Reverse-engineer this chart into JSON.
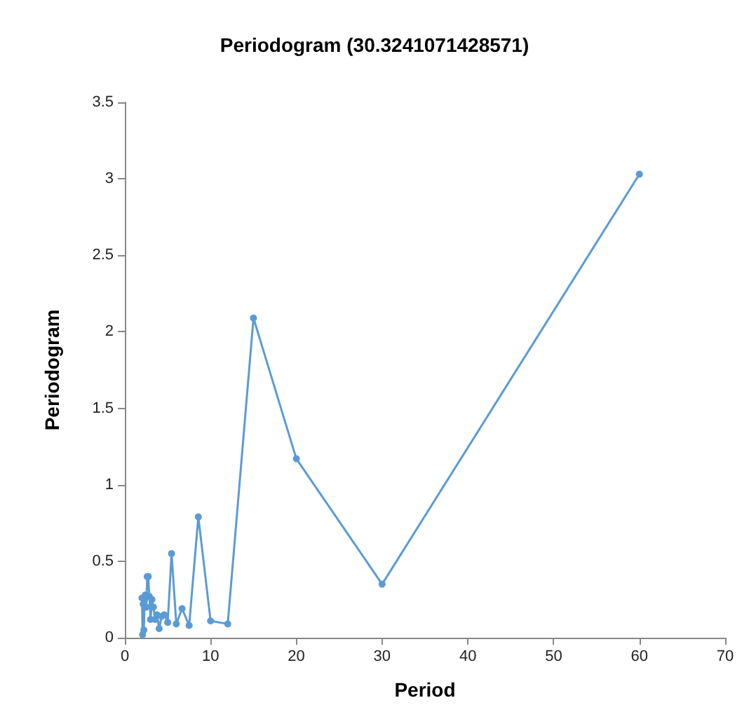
{
  "chart_data": {
    "type": "line",
    "title": "Periodogram (30.3241071428571)",
    "xlabel": "Period",
    "ylabel": "Periodogram",
    "x": [
      2,
      2.07,
      2.14,
      2.22,
      2.31,
      2.4,
      2.5,
      2.61,
      2.73,
      2.86,
      3,
      3.16,
      3.33,
      3.53,
      3.75,
      4,
      4.29,
      4.6,
      5,
      5.45,
      6,
      6.67,
      7.5,
      8.57,
      10,
      12,
      15,
      20,
      30,
      60
    ],
    "series": [
      {
        "color": "#5b9bd5",
        "values": [
          0.26,
          0.02,
          0.22,
          0.05,
          0.25,
          0.28,
          0.2,
          0.4,
          0.4,
          0.27,
          0.12,
          0.25,
          0.2,
          0.12,
          0.15,
          0.06,
          0.14,
          0.15,
          0.1,
          0.55,
          0.09,
          0.19,
          0.08,
          0.79,
          0.11,
          0.09,
          2.09,
          1.17,
          0.35,
          3.03
        ]
      }
    ],
    "xlim": [
      0,
      70
    ],
    "xticks": [
      0,
      10,
      20,
      30,
      40,
      50,
      60,
      70
    ],
    "ylim": [
      0,
      3.5
    ],
    "yticks": [
      0,
      0.5,
      1,
      1.5,
      2,
      2.5,
      3,
      3.5
    ],
    "grid": false,
    "marker": "circle",
    "line_style": "solid"
  }
}
